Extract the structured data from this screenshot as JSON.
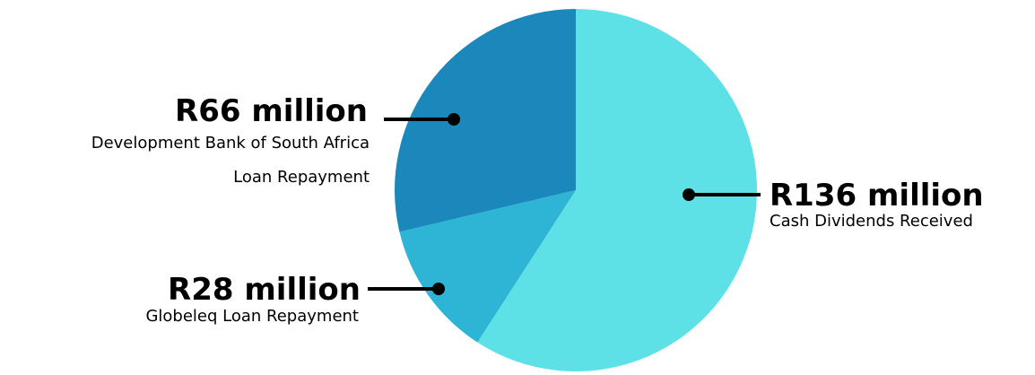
{
  "chart_data": {
    "type": "pie",
    "slices": [
      {
        "value_label": "R136 million",
        "value": 136,
        "description": [
          "Cash Dividends Received"
        ],
        "color": "#5de0e6"
      },
      {
        "value_label": "R28 million",
        "value": 28,
        "description": [
          "Globeleq Loan Repayment"
        ],
        "color": "#2eb5d6"
      },
      {
        "value_label": "R66 million",
        "value": 66,
        "description": [
          "Development Bank of South Africa",
          "Loan Repayment"
        ],
        "color": "#1a88ba"
      }
    ]
  }
}
